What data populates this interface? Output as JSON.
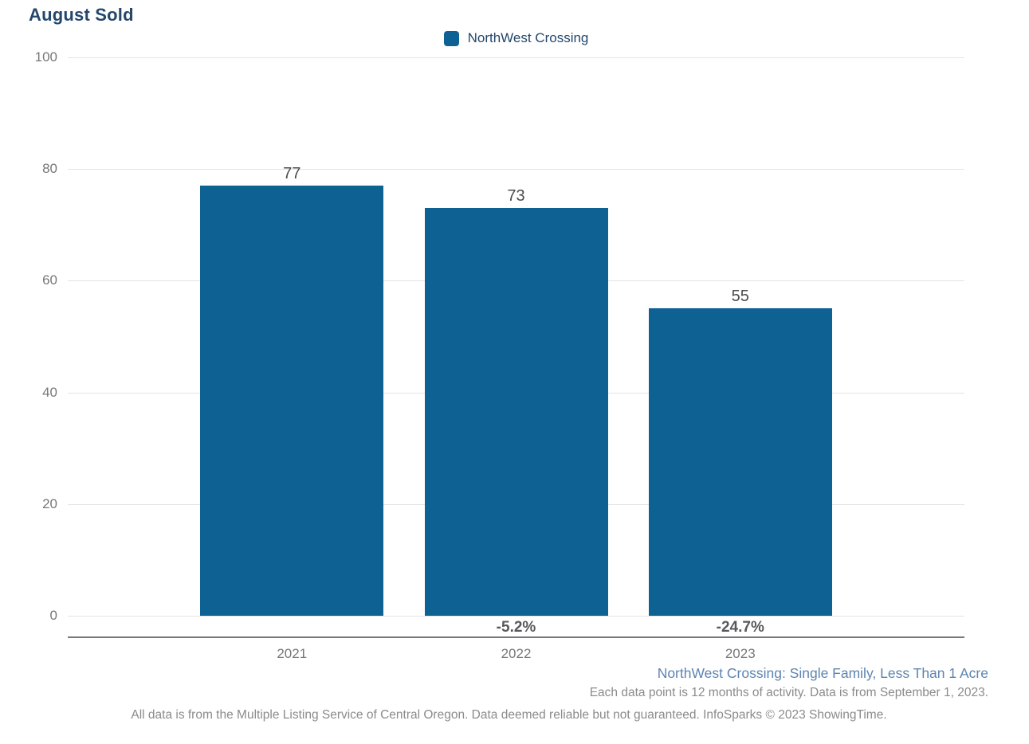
{
  "chart_data": {
    "type": "bar",
    "title": "August Sold",
    "categories": [
      "2021",
      "2022",
      "2023"
    ],
    "series": [
      {
        "name": "NorthWest Crossing",
        "values": [
          77,
          73,
          55
        ],
        "change_labels": [
          "",
          "-5.2%",
          "-24.7%"
        ],
        "color": "#0E6193"
      }
    ],
    "ylim": [
      0,
      100
    ],
    "yticks": [
      0,
      20,
      40,
      60,
      80,
      100
    ],
    "grid": "horizontal",
    "legend_position": "top-center",
    "xlabel": "",
    "ylabel": ""
  },
  "footer": {
    "line1": "NorthWest Crossing: Single Family, Less Than 1 Acre",
    "line2": "Each data point is 12 months of activity. Data is from September 1, 2023.",
    "line3": "All data is from the Multiple Listing Service of Central Oregon. Data deemed reliable but not guaranteed. InfoSparks © 2023 ShowingTime."
  },
  "colors": {
    "bar_blue": "#0E6193",
    "title_navy": "#24476B",
    "footer_blue": "#5E84B1",
    "grid_grey": "#E4E4E5",
    "axis_grey": "#77787B",
    "tick_grey": "#76777A",
    "value_grey": "#4C4C4E",
    "change_grey": "#58585B",
    "note_grey": "#8A8B8D"
  }
}
